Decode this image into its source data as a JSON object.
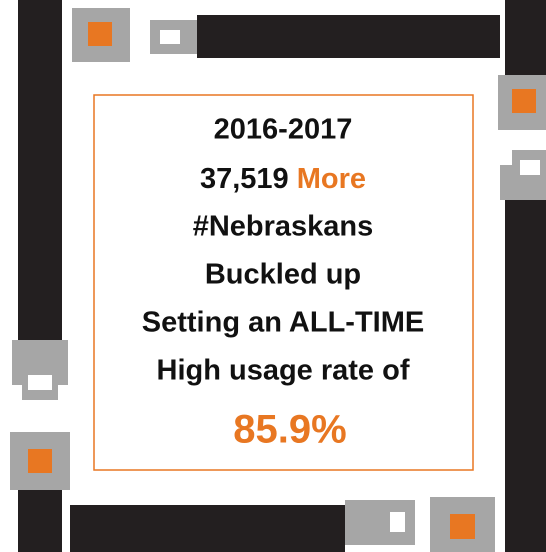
{
  "message": {
    "years": "2016-2017",
    "count": "37,519",
    "count_word": "More",
    "lines": [
      "#Nebraskans",
      "Buckled up",
      "Setting an ALL-TIME",
      "High usage rate of"
    ],
    "rate": "85.9%"
  }
}
